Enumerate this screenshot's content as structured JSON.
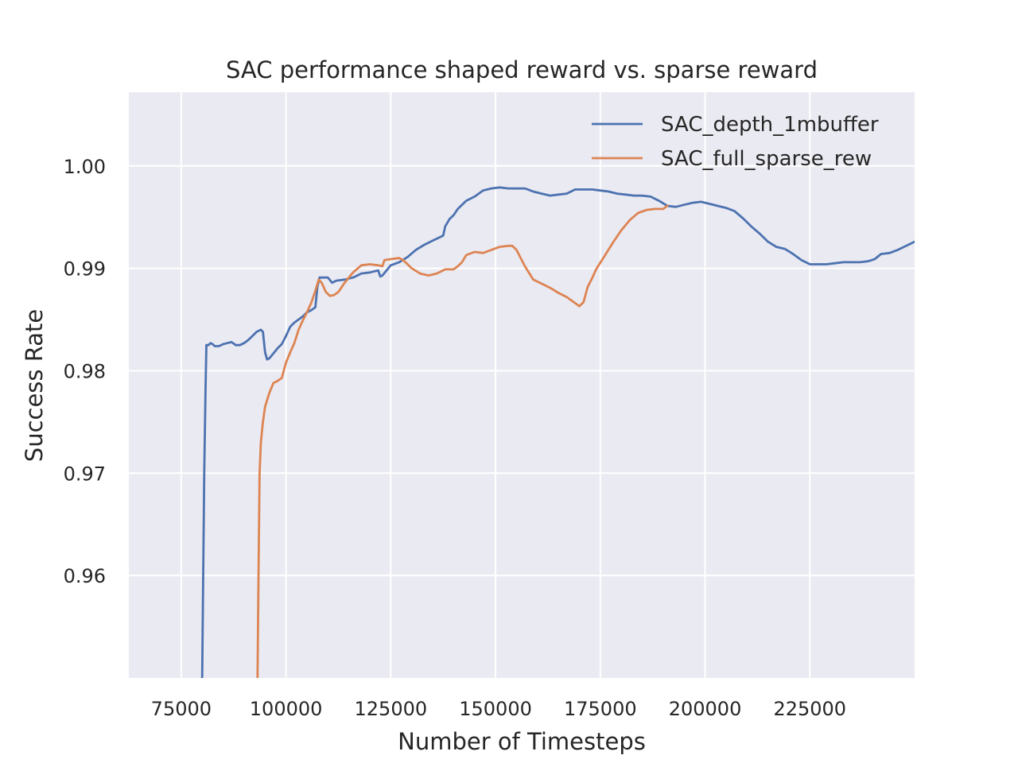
{
  "chart_data": {
    "type": "line",
    "title": "SAC performance shaped reward vs. sparse reward",
    "xlabel": "Number of Timesteps",
    "ylabel": "Success Rate",
    "xlim": [
      62500,
      250000
    ],
    "ylim": [
      0.95,
      1.0072
    ],
    "xticks": [
      75000,
      100000,
      125000,
      150000,
      175000,
      200000,
      225000
    ],
    "xtick_labels": [
      "75000",
      "100000",
      "125000",
      "150000",
      "175000",
      "200000",
      "225000"
    ],
    "yticks": [
      0.96,
      0.97,
      0.98,
      0.99,
      1.0
    ],
    "ytick_labels": [
      "0.96",
      "0.97",
      "0.98",
      "0.99",
      "1.00"
    ],
    "grid": true,
    "legend_position": "top-right",
    "series": [
      {
        "name": "SAC_depth_1mbuffer",
        "color": "#4c72b0",
        "points": [
          [
            79500,
            0.9475
          ],
          [
            80000,
            0.95
          ],
          [
            80500,
            0.97
          ],
          [
            80800,
            0.978
          ],
          [
            81000,
            0.9825
          ],
          [
            81500,
            0.9825
          ],
          [
            82000,
            0.9827
          ],
          [
            82500,
            0.9826
          ],
          [
            83000,
            0.9824
          ],
          [
            84000,
            0.9824
          ],
          [
            85000,
            0.9826
          ],
          [
            86000,
            0.9827
          ],
          [
            87000,
            0.9828
          ],
          [
            88000,
            0.9825
          ],
          [
            89000,
            0.9825
          ],
          [
            90000,
            0.9827
          ],
          [
            91000,
            0.983
          ],
          [
            92000,
            0.9834
          ],
          [
            93000,
            0.9838
          ],
          [
            94000,
            0.984
          ],
          [
            94500,
            0.9838
          ],
          [
            95000,
            0.9818
          ],
          [
            95500,
            0.9811
          ],
          [
            96000,
            0.9812
          ],
          [
            97000,
            0.9817
          ],
          [
            98000,
            0.9822
          ],
          [
            99000,
            0.9826
          ],
          [
            100000,
            0.9834
          ],
          [
            101000,
            0.9843
          ],
          [
            102000,
            0.9847
          ],
          [
            103000,
            0.985
          ],
          [
            104000,
            0.9853
          ],
          [
            105000,
            0.9857
          ],
          [
            106000,
            0.9859
          ],
          [
            107000,
            0.9862
          ],
          [
            107500,
            0.9882
          ],
          [
            108000,
            0.9891
          ],
          [
            109000,
            0.9891
          ],
          [
            110000,
            0.9891
          ],
          [
            111000,
            0.9886
          ],
          [
            112000,
            0.9888
          ],
          [
            114000,
            0.9889
          ],
          [
            116000,
            0.9891
          ],
          [
            118000,
            0.9895
          ],
          [
            120000,
            0.9896
          ],
          [
            122000,
            0.9898
          ],
          [
            122500,
            0.9892
          ],
          [
            123000,
            0.9893
          ],
          [
            124000,
            0.9898
          ],
          [
            125000,
            0.9903
          ],
          [
            127000,
            0.9906
          ],
          [
            129000,
            0.9911
          ],
          [
            131000,
            0.9918
          ],
          [
            133000,
            0.9923
          ],
          [
            135000,
            0.9927
          ],
          [
            137000,
            0.9931
          ],
          [
            137500,
            0.9932
          ],
          [
            138000,
            0.9941
          ],
          [
            139000,
            0.9948
          ],
          [
            140000,
            0.9952
          ],
          [
            141000,
            0.9958
          ],
          [
            143000,
            0.9966
          ],
          [
            145000,
            0.997
          ],
          [
            147000,
            0.9976
          ],
          [
            149000,
            0.9978
          ],
          [
            151000,
            0.9979
          ],
          [
            153000,
            0.9978
          ],
          [
            155000,
            0.9978
          ],
          [
            157000,
            0.9978
          ],
          [
            159000,
            0.9975
          ],
          [
            161000,
            0.9973
          ],
          [
            163000,
            0.9971
          ],
          [
            165000,
            0.9972
          ],
          [
            167000,
            0.9973
          ],
          [
            169000,
            0.9977
          ],
          [
            171000,
            0.9977
          ],
          [
            173000,
            0.9977
          ],
          [
            175000,
            0.9976
          ],
          [
            177000,
            0.9975
          ],
          [
            179000,
            0.9973
          ],
          [
            181000,
            0.9972
          ],
          [
            183000,
            0.9971
          ],
          [
            185000,
            0.9971
          ],
          [
            187000,
            0.997
          ],
          [
            189000,
            0.9966
          ],
          [
            191000,
            0.9961
          ],
          [
            193000,
            0.996
          ],
          [
            195000,
            0.9962
          ],
          [
            197000,
            0.9964
          ],
          [
            199000,
            0.9965
          ],
          [
            201000,
            0.9963
          ],
          [
            203000,
            0.9961
          ],
          [
            205000,
            0.9959
          ],
          [
            207000,
            0.9956
          ],
          [
            209000,
            0.9949
          ],
          [
            211000,
            0.9941
          ],
          [
            213000,
            0.9934
          ],
          [
            215000,
            0.9926
          ],
          [
            217000,
            0.9921
          ],
          [
            219000,
            0.9919
          ],
          [
            221000,
            0.9914
          ],
          [
            223000,
            0.9908
          ],
          [
            225000,
            0.9904
          ],
          [
            227000,
            0.9904
          ],
          [
            229000,
            0.9904
          ],
          [
            231000,
            0.9905
          ],
          [
            233000,
            0.9906
          ],
          [
            235000,
            0.9906
          ],
          [
            237000,
            0.9906
          ],
          [
            239000,
            0.9907
          ],
          [
            240500,
            0.9909
          ],
          [
            242000,
            0.9914
          ],
          [
            244000,
            0.9915
          ],
          [
            246000,
            0.9918
          ],
          [
            248000,
            0.9922
          ],
          [
            250000,
            0.9926
          ]
        ]
      },
      {
        "name": "SAC_full_sparse_rew",
        "color": "#dd8452",
        "points": [
          [
            93000,
            0.9475
          ],
          [
            93200,
            0.95
          ],
          [
            93500,
            0.962
          ],
          [
            93700,
            0.97
          ],
          [
            94000,
            0.973
          ],
          [
            94500,
            0.975
          ],
          [
            95000,
            0.9765
          ],
          [
            96000,
            0.9778
          ],
          [
            97000,
            0.9788
          ],
          [
            98000,
            0.979
          ],
          [
            99000,
            0.9793
          ],
          [
            100000,
            0.9808
          ],
          [
            101000,
            0.9818
          ],
          [
            102000,
            0.9827
          ],
          [
            103000,
            0.984
          ],
          [
            104000,
            0.9849
          ],
          [
            105000,
            0.9857
          ],
          [
            106000,
            0.9866
          ],
          [
            107000,
            0.9878
          ],
          [
            107800,
            0.9889
          ],
          [
            108500,
            0.9886
          ],
          [
            109500,
            0.9877
          ],
          [
            110500,
            0.9873
          ],
          [
            111500,
            0.9874
          ],
          [
            112500,
            0.9877
          ],
          [
            114000,
            0.9886
          ],
          [
            116000,
            0.9896
          ],
          [
            118000,
            0.9903
          ],
          [
            120000,
            0.9904
          ],
          [
            122000,
            0.9903
          ],
          [
            123000,
            0.9902
          ],
          [
            123500,
            0.9908
          ],
          [
            125000,
            0.9909
          ],
          [
            127000,
            0.991
          ],
          [
            128000,
            0.9908
          ],
          [
            130000,
            0.99
          ],
          [
            132000,
            0.9895
          ],
          [
            134000,
            0.9893
          ],
          [
            136000,
            0.9895
          ],
          [
            138000,
            0.9899
          ],
          [
            140000,
            0.9899
          ],
          [
            141000,
            0.9902
          ],
          [
            142000,
            0.9906
          ],
          [
            143000,
            0.9913
          ],
          [
            145000,
            0.9916
          ],
          [
            147000,
            0.9915
          ],
          [
            149000,
            0.9918
          ],
          [
            151000,
            0.9921
          ],
          [
            153000,
            0.9922
          ],
          [
            154000,
            0.9922
          ],
          [
            155000,
            0.9918
          ],
          [
            157000,
            0.9902
          ],
          [
            159000,
            0.9889
          ],
          [
            161000,
            0.9885
          ],
          [
            163000,
            0.9881
          ],
          [
            165000,
            0.9876
          ],
          [
            167000,
            0.9872
          ],
          [
            169000,
            0.9866
          ],
          [
            170000,
            0.9863
          ],
          [
            171000,
            0.9867
          ],
          [
            172000,
            0.9882
          ],
          [
            173000,
            0.989
          ],
          [
            174000,
            0.9899
          ],
          [
            176000,
            0.9912
          ],
          [
            178000,
            0.9925
          ],
          [
            180000,
            0.9937
          ],
          [
            182000,
            0.9947
          ],
          [
            184000,
            0.9954
          ],
          [
            186000,
            0.9957
          ],
          [
            188000,
            0.9958
          ],
          [
            190000,
            0.9958
          ],
          [
            191000,
            0.9961
          ]
        ]
      }
    ]
  }
}
